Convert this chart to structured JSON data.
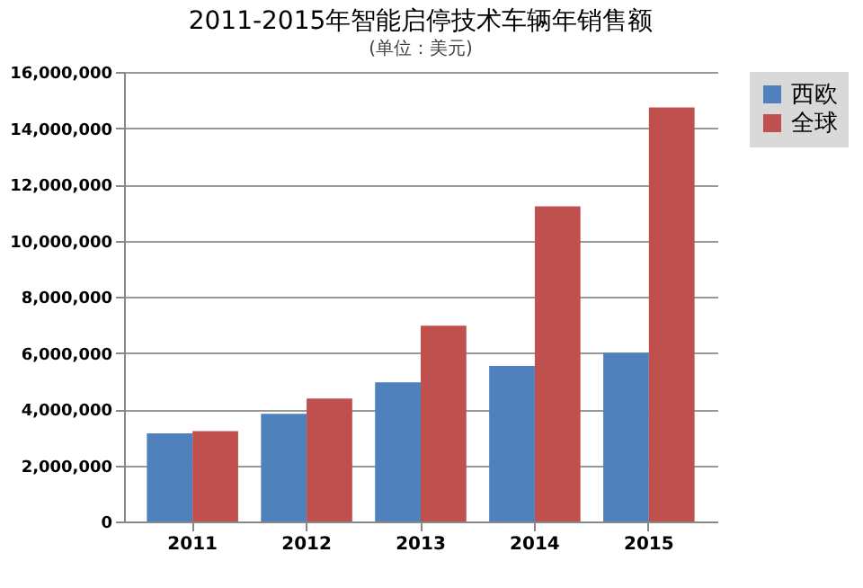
{
  "chart_data": {
    "type": "bar",
    "title": "2011-2015年智能启停技术车辆年销售额",
    "categories": [
      "2011",
      "2012",
      "2013",
      "2014",
      "2015"
    ],
    "series": [
      {
        "name": "西欧",
        "color": "#4f81bd",
        "values": [
          3140000,
          3830000,
          4950000,
          5540000,
          6000000
        ]
      },
      {
        "name": "全球",
        "color": "#c0504d",
        "values": [
          3220000,
          4380000,
          6970000,
          11220000,
          14740000
        ]
      }
    ],
    "ylim": [
      0,
      16000000
    ],
    "yticks": [
      0,
      {
        "value": 2000000,
        "label": "2,000,000"
      },
      {
        "value": 4000000,
        "label": "4,000,000"
      },
      {
        "value": 6000000,
        "label": "6,000,000"
      },
      {
        "value": 8000000,
        "label": "8,000,000"
      },
      {
        "value": 10000000,
        "label": "10,000,000"
      },
      {
        "value": 12000000,
        "label": "12,000,000"
      },
      {
        "value": 14000000,
        "label": "14,000,000"
      },
      {
        "value": 16000000,
        "label": "16,000,000"
      }
    ],
    "grid": "y",
    "legend": "right",
    "annotations": [
      "(单位：美元)"
    ]
  }
}
